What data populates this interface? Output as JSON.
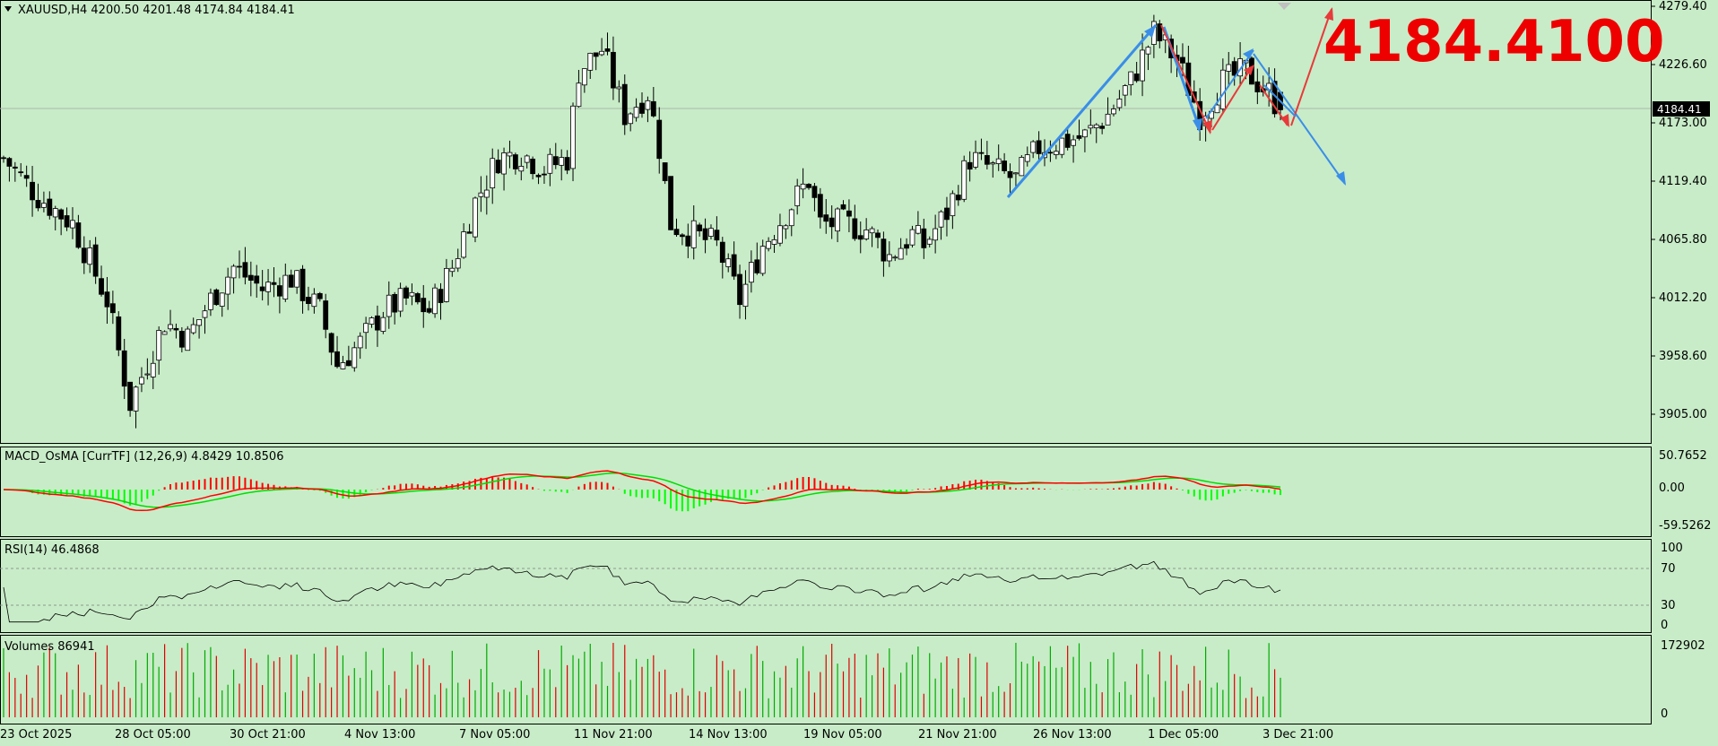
{
  "symbol_header": {
    "text": "XAUUSD,H4  4200.50 4201.48 4174.84 4184.41"
  },
  "big_price_label": {
    "text": "4184.4100",
    "color": "#ff0000"
  },
  "current_price_tag": {
    "text": "4184.41"
  },
  "colors": {
    "background": "#c8ecc8",
    "bull_body": "#ffffff",
    "bear_body": "#000000",
    "wick": "#000000",
    "blue_arrow": "#3a8ee8",
    "red_arrow": "#e83a3a",
    "macd_up_hist": "#ff0000",
    "macd_down_hist": "#00ff00",
    "macd_line": "#ff0000",
    "signal_line": "#00dd00",
    "vol_up": "#00aa00",
    "vol_down": "#dd0000"
  },
  "price_axis": {
    "labels": [
      "4279.40",
      "4226.60",
      "4173.00",
      "4119.40",
      "4065.80",
      "4012.20",
      "3958.60",
      "3905.00"
    ]
  },
  "macd_panel": {
    "title": "MACD_OsMA [CurrTF] (12,26,9) 4.8429 10.8506",
    "axis_labels": [
      "50.7652",
      "0.00",
      "-59.5262"
    ]
  },
  "rsi_panel": {
    "title": "RSI(14) 46.4868",
    "axis_labels": [
      "100",
      "70",
      "30",
      "0"
    ]
  },
  "volume_panel": {
    "title": "Volumes 86941",
    "axis_labels": [
      "172902",
      "0"
    ]
  },
  "time_axis": {
    "labels": [
      "23 Oct 2025",
      "28 Oct 05:00",
      "30 Oct 21:00",
      "4 Nov 13:00",
      "7 Nov 05:00",
      "11 Nov 21:00",
      "14 Nov 13:00",
      "19 Nov 05:00",
      "21 Nov 21:00",
      "26 Nov 13:00",
      "1 Dec 05:00",
      "3 Dec 21:00"
    ]
  },
  "chart_data": {
    "type": "candlestick",
    "symbol": "XAUUSD",
    "timeframe": "H4",
    "last_bar": {
      "open": 4200.5,
      "high": 4201.48,
      "low": 4174.84,
      "close": 4184.41
    },
    "ylim": [
      3880,
      4300
    ],
    "close_path_anchors": [
      [
        0,
        4140
      ],
      [
        6,
        4105
      ],
      [
        12,
        4080
      ],
      [
        18,
        4010
      ],
      [
        22,
        3915
      ],
      [
        28,
        3990
      ],
      [
        32,
        3975
      ],
      [
        36,
        4010
      ],
      [
        40,
        4040
      ],
      [
        45,
        4020
      ],
      [
        50,
        4030
      ],
      [
        55,
        4000
      ],
      [
        58,
        3950
      ],
      [
        62,
        3970
      ],
      [
        66,
        4000
      ],
      [
        70,
        4010
      ],
      [
        74,
        4000
      ],
      [
        78,
        4040
      ],
      [
        82,
        4100
      ],
      [
        86,
        4140
      ],
      [
        90,
        4145
      ],
      [
        94,
        4130
      ],
      [
        98,
        4140
      ],
      [
        100,
        4220
      ],
      [
        104,
        4240
      ],
      [
        108,
        4180
      ],
      [
        112,
        4200
      ],
      [
        114,
        4150
      ],
      [
        116,
        4080
      ],
      [
        120,
        4070
      ],
      [
        124,
        4060
      ],
      [
        128,
        4010
      ],
      [
        132,
        4060
      ],
      [
        136,
        4090
      ],
      [
        140,
        4120
      ],
      [
        142,
        4080
      ],
      [
        146,
        4080
      ],
      [
        150,
        4075
      ],
      [
        154,
        4050
      ],
      [
        158,
        4070
      ],
      [
        160,
        4060
      ],
      [
        164,
        4090
      ],
      [
        168,
        4140
      ],
      [
        172,
        4130
      ],
      [
        176,
        4120
      ],
      [
        180,
        4150
      ],
      [
        184,
        4155
      ],
      [
        188,
        4160
      ],
      [
        192,
        4180
      ],
      [
        196,
        4210
      ],
      [
        200,
        4255
      ],
      [
        204,
        4230
      ],
      [
        208,
        4180
      ],
      [
        212,
        4210
      ],
      [
        216,
        4220
      ],
      [
        220,
        4200
      ],
      [
        222,
        4184.41
      ]
    ],
    "volume_max": 172902,
    "macd": {
      "fast": 12,
      "slow": 26,
      "signal": 9,
      "values": [
        4.8429,
        10.8506
      ],
      "range": [
        -59.5262,
        50.7652
      ]
    },
    "rsi": {
      "period": 14,
      "value": 46.4868,
      "levels": [
        70,
        30
      ]
    }
  }
}
